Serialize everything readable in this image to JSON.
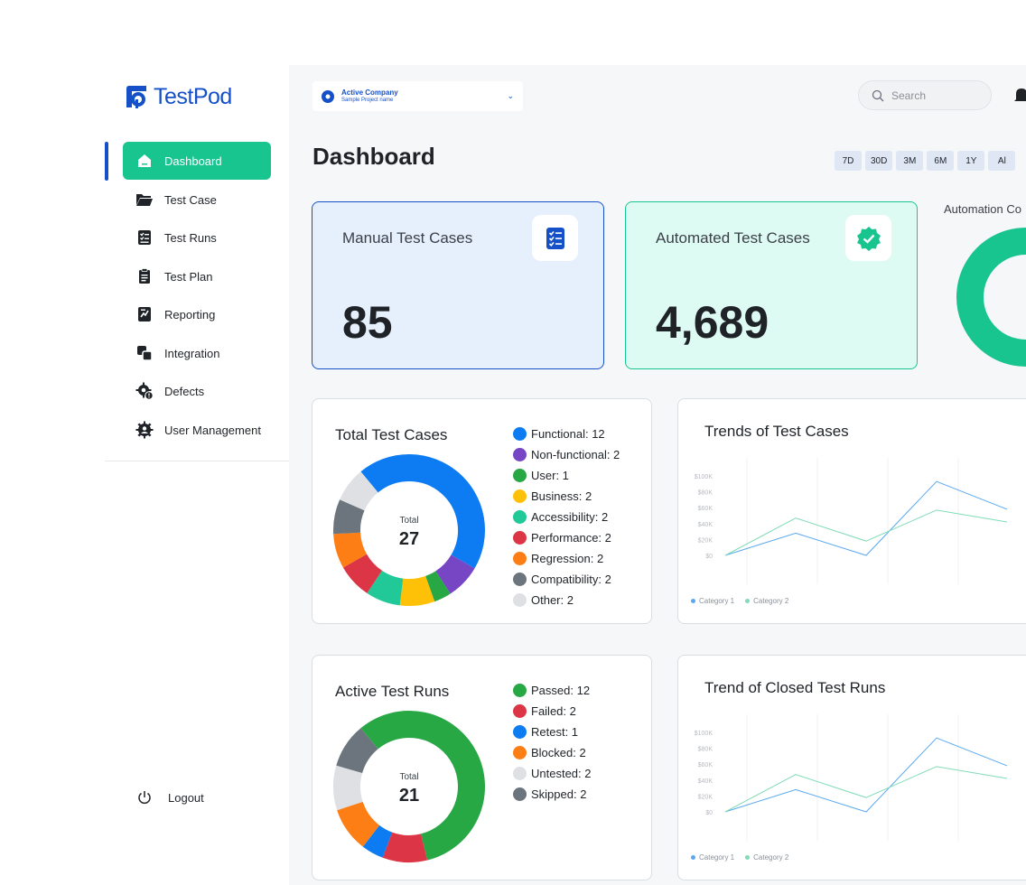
{
  "brand": {
    "name": "TestPod",
    "color": "#1550c8",
    "accent": "#18c58e"
  },
  "nav": [
    {
      "label": "Dashboard",
      "icon": "home-icon",
      "active": true
    },
    {
      "label": "Test Case",
      "icon": "folder-icon"
    },
    {
      "label": "Test Runs",
      "icon": "checklist-icon"
    },
    {
      "label": "Test Plan",
      "icon": "clipboard-icon"
    },
    {
      "label": "Reporting",
      "icon": "report-icon"
    },
    {
      "label": "Integration",
      "icon": "integration-icon"
    },
    {
      "label": "Defects",
      "icon": "bug-gear-icon"
    },
    {
      "label": "User Management",
      "icon": "user-gear-icon"
    }
  ],
  "logout": "Logout",
  "header": {
    "company": "Active Company",
    "project": "Sample Project name",
    "search_placeholder": "Search"
  },
  "page_title": "Dashboard",
  "ranges": [
    "7D",
    "30D",
    "3M",
    "6M",
    "1Y",
    "Al"
  ],
  "stats": {
    "manual": {
      "label": "Manual Test Cases",
      "value": "85"
    },
    "automated": {
      "label": "Automated Test Cases",
      "value": "4,689"
    },
    "coverage_label": "Automation Co"
  },
  "total_test_cases": {
    "title": "Total Test Cases",
    "center_label": "Total",
    "center_value": "27",
    "items": [
      {
        "name": "Functional",
        "value": 12,
        "color": "#0d7cf2",
        "text": "Functional: 12"
      },
      {
        "name": "Non-functional",
        "value": 2,
        "color": "#7646c4",
        "text": "Non-functional: 2"
      },
      {
        "name": "User",
        "value": 1,
        "color": "#28a745",
        "text": "User: 1"
      },
      {
        "name": "Business",
        "value": 2,
        "color": "#ffc107",
        "text": "Business: 2"
      },
      {
        "name": "Accessibility",
        "value": 2,
        "color": "#20c997",
        "text": "Accessibility: 2"
      },
      {
        "name": "Performance",
        "value": 2,
        "color": "#dc3545",
        "text": "Performance: 2"
      },
      {
        "name": "Regression",
        "value": 2,
        "color": "#fd7e14",
        "text": "Regression: 2"
      },
      {
        "name": "Compatibility",
        "value": 2,
        "color": "#6c757d",
        "text": "Compatibility: 2"
      },
      {
        "name": "Other",
        "value": 2,
        "color": "#dee0e3",
        "text": "Other: 2"
      }
    ]
  },
  "active_test_runs": {
    "title": "Active Test Runs",
    "center_label": "Total",
    "center_value": "21",
    "items": [
      {
        "name": "Passed",
        "value": 12,
        "color": "#28a745",
        "text": "Passed: 12"
      },
      {
        "name": "Failed",
        "value": 2,
        "color": "#dc3545",
        "text": "Failed: 2"
      },
      {
        "name": "Retest",
        "value": 1,
        "color": "#0d7cf2",
        "text": "Retest: 1"
      },
      {
        "name": "Blocked",
        "value": 2,
        "color": "#fd7e14",
        "text": "Blocked: 2"
      },
      {
        "name": "Untested",
        "value": 2,
        "color": "#dee0e3",
        "text": "Untested: 2"
      },
      {
        "name": "Skipped",
        "value": 2,
        "color": "#6c757d",
        "text": "Skipped: 2"
      }
    ]
  },
  "chart_data": [
    {
      "type": "line",
      "title": "Trends of Test Cases",
      "y_ticks": [
        "$100K",
        "$80K",
        "$60K",
        "$40K",
        "$20K",
        "$0"
      ],
      "ylim": [
        0,
        100000
      ],
      "series": [
        {
          "name": "Category 1",
          "color": "#5aa9f0",
          "values": [
            0,
            28000,
            0,
            93000,
            58000
          ]
        },
        {
          "name": "Category 2",
          "color": "#7fdcb6",
          "values": [
            0,
            47000,
            18000,
            57000,
            42000
          ]
        }
      ]
    },
    {
      "type": "line",
      "title": "Trend of Closed Test Runs",
      "y_ticks": [
        "$100K",
        "$80K",
        "$60K",
        "$40K",
        "$20K",
        "$0"
      ],
      "ylim": [
        0,
        100000
      ],
      "series": [
        {
          "name": "Category 1",
          "color": "#5aa9f0",
          "values": [
            0,
            28000,
            0,
            93000,
            58000
          ]
        },
        {
          "name": "Category 2",
          "color": "#7fdcb6",
          "values": [
            0,
            47000,
            18000,
            57000,
            42000
          ]
        }
      ]
    },
    {
      "type": "pie",
      "title": "Automation Co",
      "series": [
        {
          "values": [
            6,
            94
          ],
          "colors": [
            "#1550c8",
            "#18c58e"
          ]
        }
      ]
    }
  ]
}
